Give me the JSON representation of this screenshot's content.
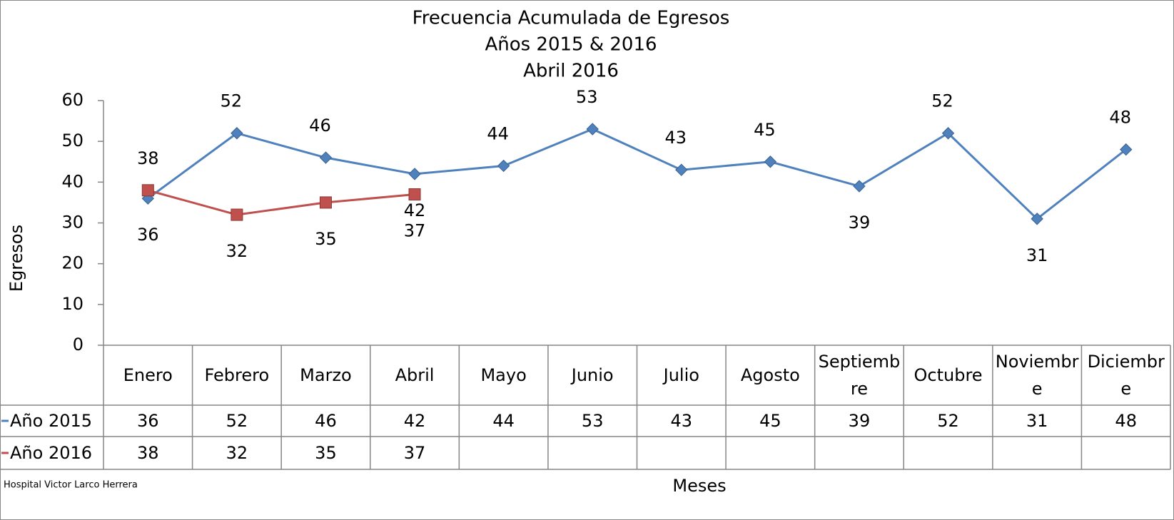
{
  "chart_data": {
    "type": "line",
    "title": [
      "Frecuencia Acumulada de Egresos",
      "Años 2015 & 2016",
      "Abril 2016"
    ],
    "y_label": "Egresos",
    "x_label": "Meses",
    "footer": "Hospital Victor Larco Herrera",
    "categories": [
      "Enero",
      "Febrero",
      "Marzo",
      "Abril",
      "Mayo",
      "Junio",
      "Julio",
      "Agosto",
      "Septiembre",
      "Octubre",
      "Noviembre",
      "Diciembre"
    ],
    "series": [
      {
        "name": "Año 2015",
        "color": "#4f81bd",
        "marker": "diamond",
        "values": [
          36,
          52,
          46,
          42,
          44,
          53,
          43,
          45,
          39,
          52,
          31,
          48
        ]
      },
      {
        "name": "Año 2016",
        "color": "#c0504d",
        "marker": "square",
        "values": [
          38,
          32,
          35,
          37,
          null,
          null,
          null,
          null,
          null,
          null,
          null,
          null
        ]
      }
    ],
    "ylim": [
      0,
      60
    ],
    "yticks": [
      0,
      10,
      20,
      30,
      40,
      50,
      60
    ]
  }
}
